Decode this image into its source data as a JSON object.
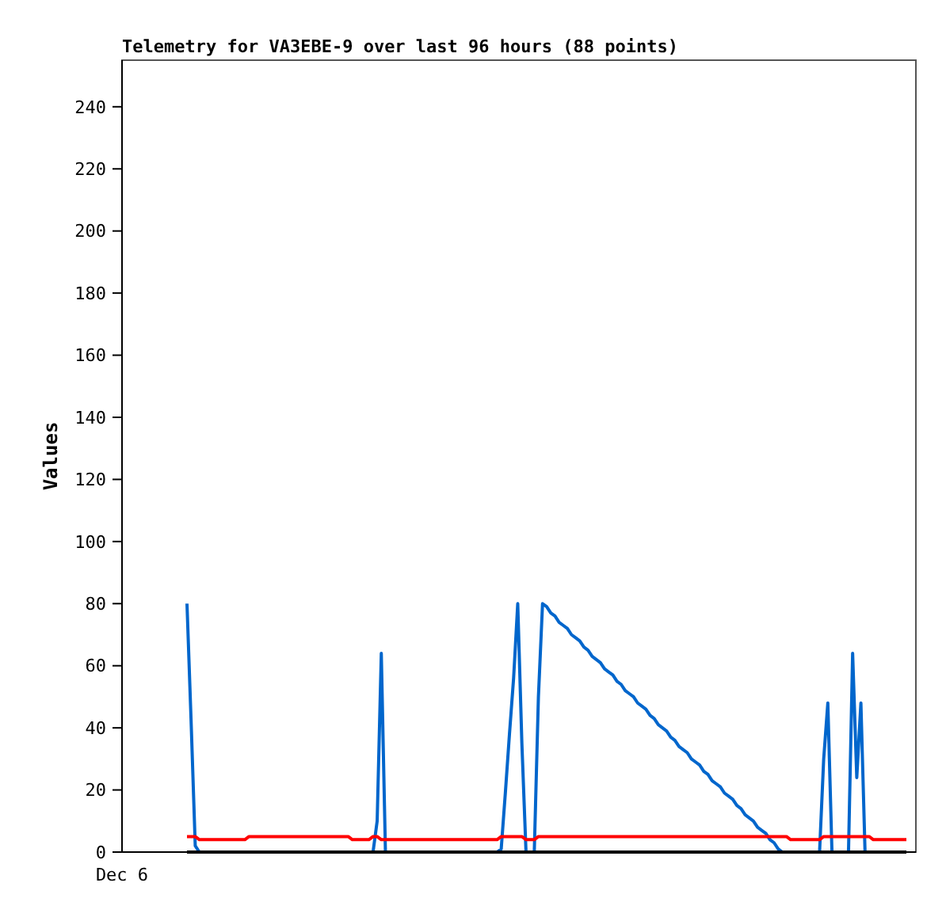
{
  "chart_data": {
    "type": "line",
    "title": "Telemetry for VA3EBE-9 over last 96 hours (88 points)",
    "ylabel": "Values",
    "annotations": [
      "Dec 6"
    ],
    "ylim": [
      0,
      255
    ],
    "yticks": [
      0,
      20,
      40,
      60,
      80,
      100,
      120,
      140,
      160,
      180,
      200,
      220,
      240
    ],
    "grid": false,
    "marker": "none",
    "line_style": "solid",
    "categories": [
      null,
      null,
      null,
      null,
      null,
      null,
      null,
      null,
      null,
      null,
      null,
      null,
      null,
      null,
      null,
      null,
      null,
      null,
      null,
      null,
      null,
      null,
      null,
      null,
      null,
      null,
      null,
      null,
      null,
      null,
      null,
      null,
      null,
      null,
      null,
      null,
      null,
      null,
      null,
      null,
      null,
      null,
      null,
      null,
      null,
      null,
      null,
      null,
      null,
      null,
      null,
      null,
      null,
      null,
      null,
      null,
      null,
      null,
      null,
      null,
      null,
      null,
      null,
      null,
      null,
      null,
      null,
      null,
      null,
      null,
      null,
      null,
      null,
      null,
      null,
      null,
      null,
      null,
      null,
      null,
      null,
      null,
      null,
      null,
      null,
      null,
      null,
      null,
      null,
      null,
      null,
      null,
      null,
      null,
      null,
      null,
      null,
      null,
      null,
      null,
      null,
      null,
      null,
      null,
      null,
      null,
      null,
      null,
      null,
      null,
      null,
      null,
      null,
      null,
      null,
      null,
      null,
      null,
      null,
      null,
      null,
      null,
      null,
      null,
      null,
      null,
      null,
      null,
      null,
      null,
      null,
      null,
      null,
      null,
      null,
      null,
      null,
      null,
      null,
      null,
      null,
      null,
      null,
      null,
      null,
      null,
      null,
      null,
      null,
      null,
      null,
      null,
      null,
      null,
      null,
      null,
      null,
      null,
      null,
      null,
      null,
      null,
      null,
      null,
      null,
      null,
      null,
      null,
      null,
      null,
      null,
      null,
      null,
      null,
      null
    ],
    "series": [
      {
        "color": "#0066cc",
        "values": [
          80,
          42,
          2,
          0,
          0,
          0,
          0,
          0,
          0,
          0,
          0,
          0,
          0,
          0,
          0,
          0,
          0,
          0,
          0,
          0,
          0,
          0,
          0,
          0,
          0,
          0,
          0,
          0,
          0,
          0,
          0,
          0,
          0,
          0,
          0,
          0,
          0,
          0,
          0,
          0,
          0,
          0,
          0,
          0,
          0,
          0,
          10,
          64,
          0,
          0,
          0,
          0,
          0,
          0,
          0,
          0,
          0,
          0,
          0,
          0,
          0,
          0,
          0,
          0,
          0,
          0,
          0,
          0,
          0,
          0,
          0,
          0,
          0,
          0,
          0,
          0,
          1,
          19,
          38,
          56,
          80,
          35,
          0,
          0,
          0,
          50,
          80,
          79,
          77,
          76,
          74,
          73,
          72,
          70,
          69,
          68,
          66,
          65,
          63,
          62,
          61,
          59,
          58,
          57,
          55,
          54,
          52,
          51,
          50,
          48,
          47,
          46,
          44,
          43,
          41,
          40,
          39,
          37,
          36,
          34,
          33,
          32,
          30,
          29,
          28,
          26,
          25,
          23,
          22,
          21,
          19,
          18,
          17,
          15,
          14,
          12,
          11,
          10,
          8,
          7,
          6,
          4,
          3,
          1,
          0,
          0,
          0,
          0,
          0,
          0,
          0,
          0,
          0,
          0,
          30,
          48,
          0,
          0,
          0,
          0,
          0,
          64,
          24,
          48,
          0,
          null,
          null,
          null,
          null,
          null,
          null,
          null,
          null,
          null,
          null
        ]
      },
      {
        "color": "#ff0000",
        "values": [
          5,
          5,
          5,
          4,
          4,
          4,
          4,
          4,
          4,
          4,
          4,
          4,
          4,
          4,
          4,
          5,
          5,
          5,
          5,
          5,
          5,
          5,
          5,
          5,
          5,
          5,
          5,
          5,
          5,
          5,
          5,
          5,
          5,
          5,
          5,
          5,
          5,
          5,
          5,
          5,
          4,
          4,
          4,
          4,
          4,
          5,
          5,
          4,
          4,
          4,
          4,
          4,
          4,
          4,
          4,
          4,
          4,
          4,
          4,
          4,
          4,
          4,
          4,
          4,
          4,
          4,
          4,
          4,
          4,
          4,
          4,
          4,
          4,
          4,
          4,
          4,
          5,
          5,
          5,
          5,
          5,
          5,
          4,
          4,
          4,
          5,
          5,
          5,
          5,
          5,
          5,
          5,
          5,
          5,
          5,
          5,
          5,
          5,
          5,
          5,
          5,
          5,
          5,
          5,
          5,
          5,
          5,
          5,
          5,
          5,
          5,
          5,
          5,
          5,
          5,
          5,
          5,
          5,
          5,
          5,
          5,
          5,
          5,
          5,
          5,
          5,
          5,
          5,
          5,
          5,
          5,
          5,
          5,
          5,
          5,
          5,
          5,
          5,
          5,
          5,
          5,
          5,
          5,
          5,
          5,
          5,
          4,
          4,
          4,
          4,
          4,
          4,
          4,
          4,
          5,
          5,
          5,
          5,
          5,
          5,
          5,
          5,
          5,
          5,
          5,
          5,
          4,
          4,
          4,
          4,
          4,
          4,
          4,
          4,
          4
        ]
      },
      {
        "color": "#000000",
        "values": [
          0,
          0,
          0,
          0,
          0,
          0,
          0,
          0,
          0,
          0,
          0,
          0,
          0,
          0,
          0,
          0,
          0,
          0,
          0,
          0,
          0,
          0,
          0,
          0,
          0,
          0,
          0,
          0,
          0,
          0,
          0,
          0,
          0,
          0,
          0,
          0,
          0,
          0,
          0,
          0,
          0,
          0,
          0,
          0,
          0,
          0,
          0,
          0,
          0,
          0,
          0,
          0,
          0,
          0,
          0,
          0,
          0,
          0,
          0,
          0,
          0,
          0,
          0,
          0,
          0,
          0,
          0,
          0,
          0,
          0,
          0,
          0,
          0,
          0,
          0,
          0,
          0,
          0,
          0,
          0,
          0,
          0,
          0,
          0,
          0,
          0,
          0,
          0,
          0,
          0,
          0,
          0,
          0,
          0,
          0,
          0,
          0,
          0,
          0,
          0,
          0,
          0,
          0,
          0,
          0,
          0,
          0,
          0,
          0,
          0,
          0,
          0,
          0,
          0,
          0,
          0,
          0,
          0,
          0,
          0,
          0,
          0,
          0,
          0,
          0,
          0,
          0,
          0,
          0,
          0,
          0,
          0,
          0,
          0,
          0,
          0,
          0,
          0,
          0,
          0,
          0,
          0,
          0,
          0,
          0,
          0,
          0,
          0,
          0,
          0,
          0,
          0,
          0,
          0,
          0,
          0,
          0,
          0,
          0,
          0,
          0,
          0,
          0,
          0,
          0,
          0,
          0,
          0,
          0,
          0,
          0,
          0,
          0,
          0,
          0
        ]
      }
    ]
  }
}
